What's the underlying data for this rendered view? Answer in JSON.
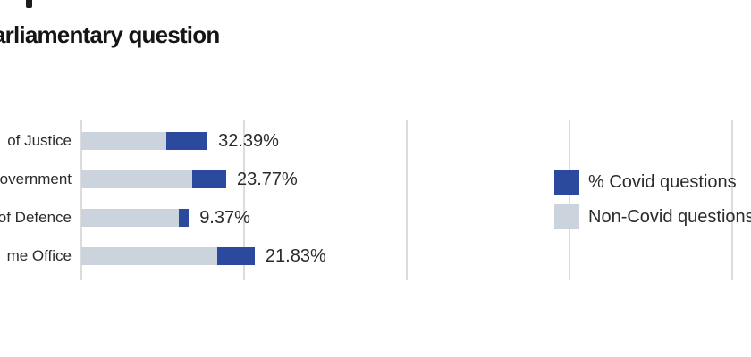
{
  "page": {
    "background": "#ffffff"
  },
  "chart_data": {
    "type": "bar",
    "orientation": "horizontal",
    "stacked": true,
    "title": "arliamentary question",
    "title_note": "title cropped at left edge of screenshot",
    "categories": [
      "of Justice",
      "overnment",
      "of Defence",
      "me Office"
    ],
    "rows": [
      {
        "label": "of Justice",
        "value_label": "32.39%",
        "covid_pct": 32.39,
        "total_axis_units": 0.775
      },
      {
        "label": "overnment",
        "value_label": "23.77%",
        "covid_pct": 23.77,
        "total_axis_units": 0.89
      },
      {
        "label": "of Defence",
        "value_label": "9.37%",
        "covid_pct": 9.37,
        "total_axis_units": 0.66
      },
      {
        "label": "me Office",
        "value_label": "21.83%",
        "covid_pct": 21.83,
        "total_axis_units": 1.065
      }
    ],
    "series": [
      {
        "name": "% Covid questions",
        "role": "covid share of bar"
      },
      {
        "name": "Non-Covid questions",
        "role": "remainder of bar"
      }
    ],
    "legend": [
      {
        "label": "% Covid questions",
        "color": "#2B4A9D"
      },
      {
        "label": "Non-Covid questions",
        "color": "#CBD4DC"
      }
    ],
    "legend_position": "right",
    "axis": {
      "gridlines": 5,
      "tick_labels": "not visible (cropped)"
    },
    "colors": {
      "covid": "#2B4A9D",
      "non_covid": "#CBD4DC",
      "gridline": "#DCDCDC",
      "text": "#2B2B2B",
      "title": "#151515"
    }
  }
}
